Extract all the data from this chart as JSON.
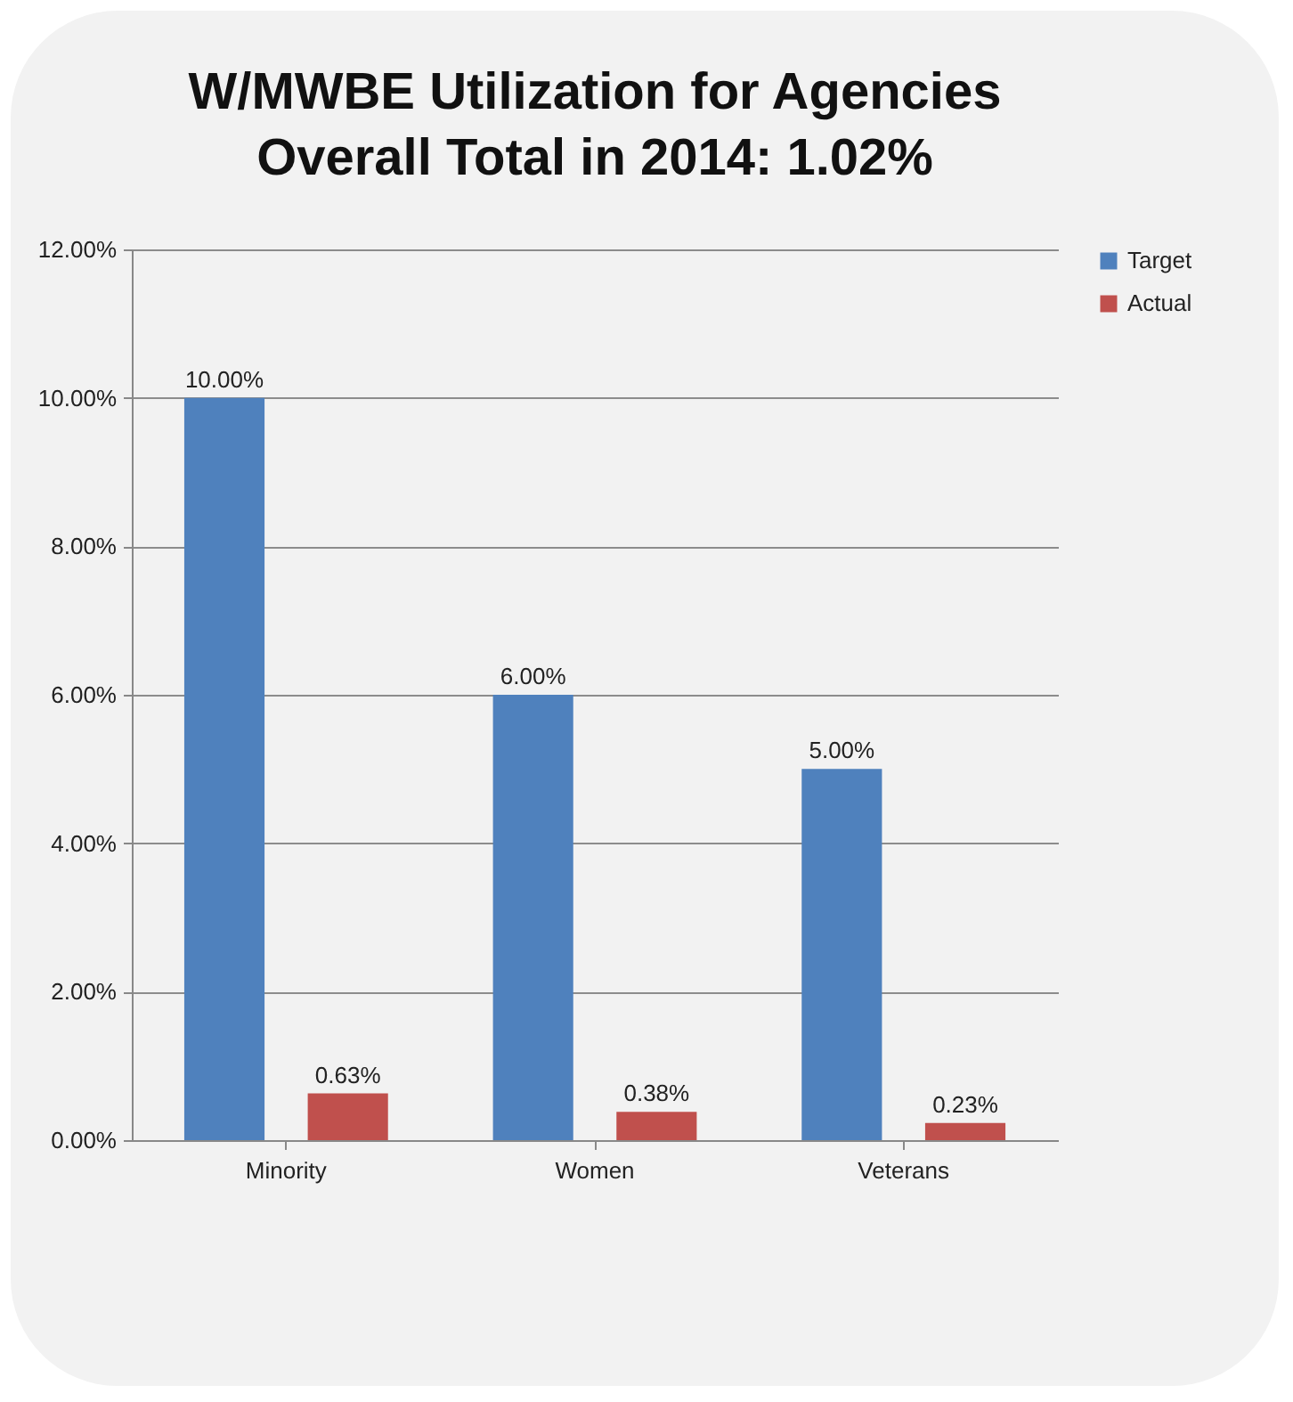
{
  "chart_data": {
    "type": "bar",
    "title": "W/MWBE Utilization for Agencies",
    "subtitle": "Overall Total in 2014:  1.02%",
    "categories": [
      "Minority",
      "Women",
      "Veterans"
    ],
    "series": [
      {
        "name": "Target",
        "color": "#4f81bd",
        "values": [
          10,
          6,
          5
        ],
        "value_labels": [
          "10.00%",
          "6.00%",
          "5.00%"
        ]
      },
      {
        "name": "Actual",
        "color": "#c0504d",
        "values": [
          0.63,
          0.38,
          0.23
        ],
        "value_labels": [
          "0.63%",
          "0.38%",
          "0.23%"
        ]
      }
    ],
    "ylim": [
      0,
      12
    ],
    "yticks": [
      {
        "value": 0,
        "label": "0.00%"
      },
      {
        "value": 2,
        "label": "2.00%"
      },
      {
        "value": 4,
        "label": "4.00%"
      },
      {
        "value": 6,
        "label": "6.00%"
      },
      {
        "value": 8,
        "label": "8.00%"
      },
      {
        "value": 10,
        "label": "10.00%"
      },
      {
        "value": 12,
        "label": "12.00%"
      }
    ],
    "grid": "y",
    "legend": "right"
  }
}
